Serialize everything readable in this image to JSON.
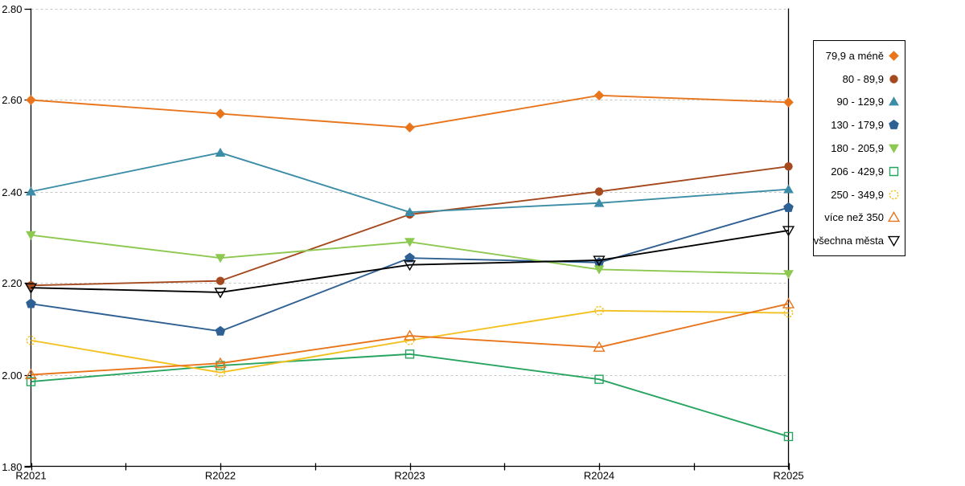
{
  "chart_data": {
    "type": "line",
    "title": "",
    "xlabel": "",
    "ylabel": "",
    "categories": [
      "R2021",
      "R2022",
      "R2023",
      "R2024",
      "R2025"
    ],
    "series": [
      {
        "name": "79,9 a méně",
        "color": "#E8751C",
        "marker": "diamond",
        "marker_fill": "solid",
        "values": [
          2.6,
          2.57,
          2.54,
          2.61,
          2.595
        ]
      },
      {
        "name": "80 - 89,9",
        "color": "#A5491E",
        "marker": "circle",
        "marker_fill": "solid",
        "values": [
          2.195,
          2.205,
          2.35,
          2.4,
          2.455
        ]
      },
      {
        "name": "90 - 129,9",
        "color": "#3B8CA6",
        "marker": "triangle-up",
        "marker_fill": "solid",
        "values": [
          2.4,
          2.485,
          2.355,
          2.375,
          2.405
        ]
      },
      {
        "name": "130 - 179,9",
        "color": "#2F6093",
        "marker": "pentagon",
        "marker_fill": "solid",
        "values": [
          2.155,
          2.095,
          2.255,
          2.245,
          2.365
        ]
      },
      {
        "name": "180 - 205,9",
        "color": "#8DC850",
        "marker": "triangle-down",
        "marker_fill": "solid",
        "values": [
          2.305,
          2.255,
          2.29,
          2.23,
          2.22
        ]
      },
      {
        "name": "206 - 429,9",
        "color": "#27A45F",
        "marker": "square",
        "marker_fill": "open",
        "values": [
          1.985,
          2.02,
          2.045,
          1.99,
          1.865
        ]
      },
      {
        "name": "250 - 349,9",
        "color": "#F2C11E",
        "marker": "circle",
        "marker_fill": "open-dashed",
        "values": [
          2.075,
          2.005,
          2.075,
          2.14,
          2.135
        ]
      },
      {
        "name": "více než 350",
        "color": "#E8751C",
        "marker": "triangle-up",
        "marker_fill": "open",
        "values": [
          2.0,
          2.025,
          2.085,
          2.06,
          2.155
        ]
      },
      {
        "name": "všechna města",
        "color": "#000000",
        "marker": "triangle-down",
        "marker_fill": "open",
        "values": [
          2.19,
          2.18,
          2.24,
          2.25,
          2.315
        ]
      }
    ],
    "ylim": [
      1.8,
      2.8
    ],
    "ytick_values": [
      1.8,
      2.0,
      2.2,
      2.4,
      2.6,
      2.8
    ],
    "ytick_labels": [
      "1.80",
      "2.00",
      "2.20",
      "2.40",
      "2.60",
      "2.80"
    ],
    "grid": "horizontal-dashed",
    "grid_color": "#C6C6C6",
    "axis_color": "#000000",
    "minor_ticks_between_categories": true,
    "right_boundary_line": true,
    "legend_position": "right"
  }
}
